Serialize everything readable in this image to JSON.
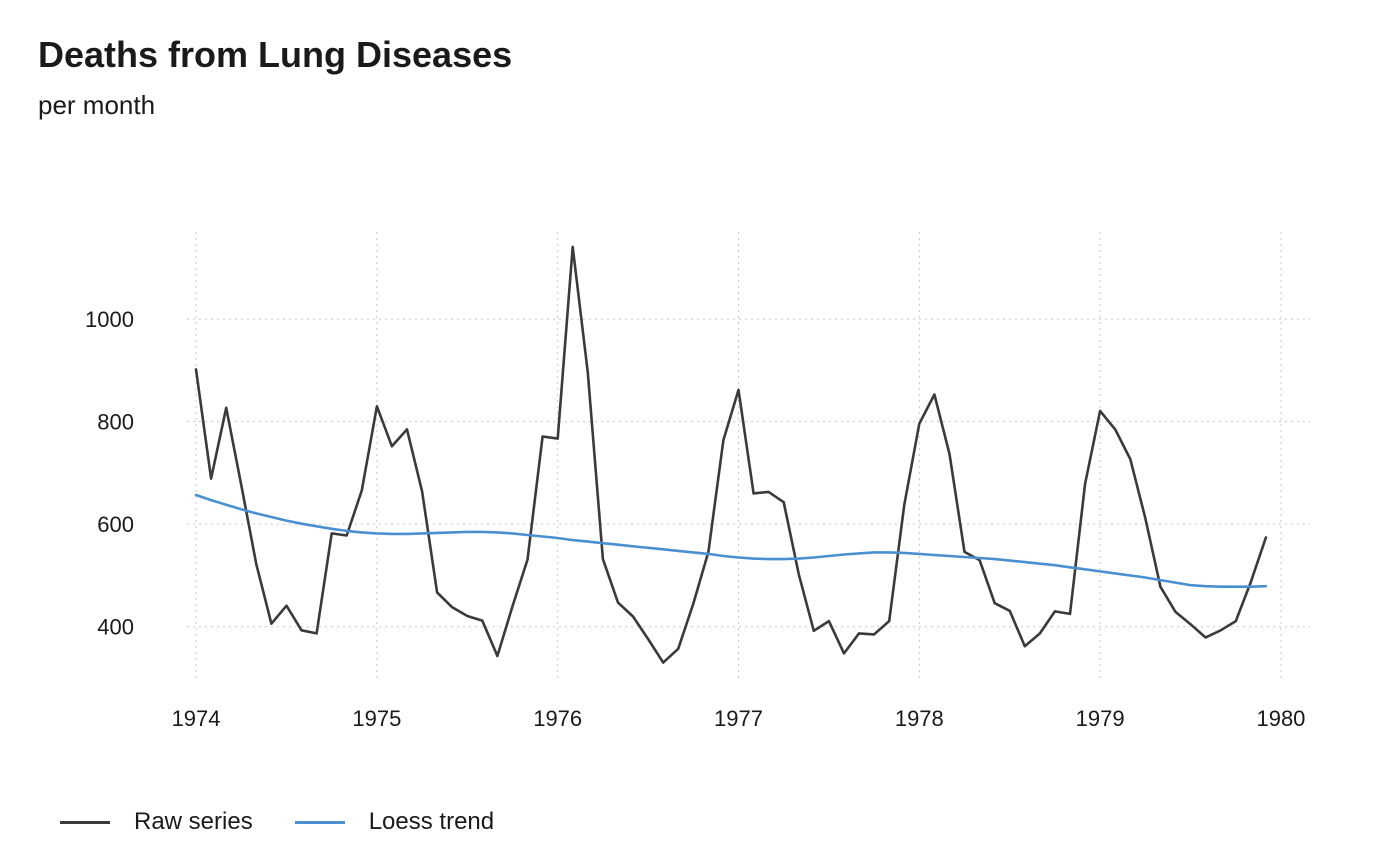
{
  "chart_data": {
    "type": "line",
    "title": "Deaths from Lung Diseases",
    "subtitle": "per month",
    "xlabel": "",
    "ylabel": "",
    "xlim": [
      1973.95,
      1980.05
    ],
    "ylim": [
      300,
      1170
    ],
    "x_ticks": [
      1974,
      1975,
      1976,
      1977,
      1978,
      1979,
      1980
    ],
    "y_ticks": [
      400,
      600,
      800,
      1000
    ],
    "grid": true,
    "legend_position": "bottom",
    "x_start": 1974,
    "x_step_months": 1,
    "series": [
      {
        "name": "Raw series",
        "color": "#3a3a3a",
        "values": [
          902,
          689,
          827,
          677,
          522,
          406,
          441,
          393,
          387,
          582,
          578,
          666,
          830,
          752,
          785,
          664,
          467,
          438,
          421,
          412,
          343,
          440,
          531,
          771,
          767,
          1141,
          896,
          532,
          447,
          420,
          376,
          330,
          357,
          445,
          546,
          764,
          862,
          660,
          663,
          643,
          502,
          392,
          411,
          348,
          387,
          385,
          411,
          638,
          796,
          853,
          737,
          546,
          530,
          446,
          431,
          362,
          387,
          430,
          425,
          679,
          821,
          785,
          727,
          612,
          478,
          429,
          405,
          379,
          393,
          411,
          487,
          574
        ]
      },
      {
        "name": "Loess trend",
        "color": "#4a90d0",
        "values": [
          657,
          647,
          638,
          629,
          621,
          614,
          607,
          601,
          596,
          591,
          587,
          584,
          582,
          581,
          581,
          582,
          583,
          584,
          585,
          585,
          584,
          582,
          579,
          576,
          573,
          569,
          566,
          563,
          560,
          557,
          554,
          551,
          548,
          545,
          542,
          538,
          535,
          533,
          532,
          532,
          533,
          535,
          538,
          541,
          543,
          545,
          545,
          544,
          542,
          540,
          538,
          536,
          534,
          532,
          529,
          526,
          523,
          520,
          516,
          512,
          508,
          504,
          500,
          496,
          491,
          486,
          481,
          479,
          478,
          478,
          478,
          479
        ]
      }
    ]
  }
}
